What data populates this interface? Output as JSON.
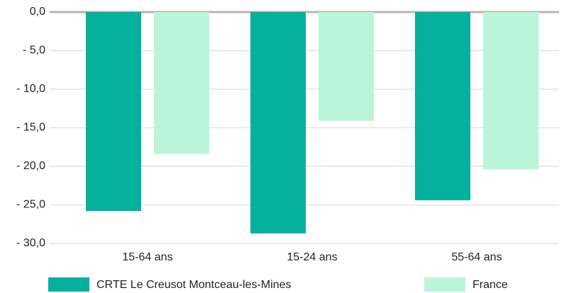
{
  "chart_data": {
    "type": "bar",
    "categories": [
      "15-64 ans",
      "15-24 ans",
      "55-64 ans"
    ],
    "series": [
      {
        "name": "CRTE Le Creusot Montceau-les-Mines",
        "color": "#05b09c",
        "values": [
          -25.8,
          -28.7,
          -24.4
        ]
      },
      {
        "name": "France",
        "color": "#bbf5d9",
        "values": [
          -18.4,
          -14.1,
          -20.4
        ]
      }
    ],
    "ylim": [
      -30,
      0
    ],
    "yticks": [
      {
        "value": 0,
        "label": "0,0"
      },
      {
        "value": -5,
        "label": "- 5,0"
      },
      {
        "value": -10,
        "label": "- 10,0"
      },
      {
        "value": -15,
        "label": "- 15,0"
      },
      {
        "value": -20,
        "label": "- 20,0"
      },
      {
        "value": -25,
        "label": "- 25,0"
      },
      {
        "value": -30,
        "label": "- 30,0"
      }
    ],
    "grid": true,
    "legend": "bottom"
  }
}
